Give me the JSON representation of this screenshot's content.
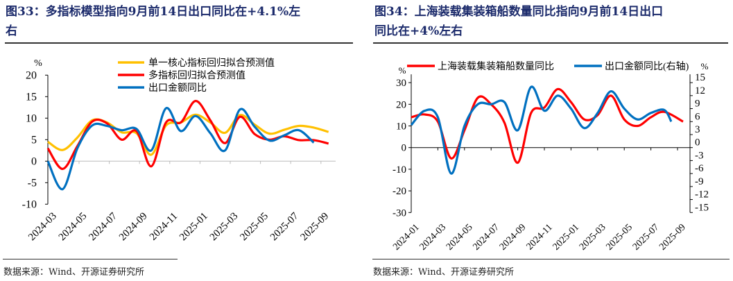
{
  "panels": [
    {
      "title_line1": "图33：多指标模型指向9月前14日出口同比在+4.1%左",
      "title_line2": "右",
      "source": "数据来源：Wind、开源证券研究所"
    },
    {
      "title_line1": "图34：上海装载集装箱船数量同比指向9月前14日出口",
      "title_line2": "同比在+4%左右",
      "source": "数据来源：Wind、开源证券研究所"
    }
  ],
  "chart_data": [
    {
      "type": "line",
      "unit_label": "%",
      "x": [
        "2024-02",
        "2024-03",
        "2024-04",
        "2024-05",
        "2024-06",
        "2024-07",
        "2024-08",
        "2024-09",
        "2024-10",
        "2024-11",
        "2024-12",
        "2025-01",
        "2025-02",
        "2025-03",
        "2025-04",
        "2025-05",
        "2025-06",
        "2025-07",
        "2025-08",
        "2025-09"
      ],
      "xtick_labels": [
        "2024-03",
        "2024-05",
        "2024-07",
        "2024-09",
        "2024-11",
        "2025-01",
        "2025-03",
        "2025-05",
        "2025-07",
        "2025-09"
      ],
      "ylim": [
        -10,
        20
      ],
      "yticks": [
        20,
        15,
        10,
        5,
        0,
        -5,
        -10
      ],
      "legend_position": "top-right",
      "series": [
        {
          "name": "单一核心指标回归拟合预测值",
          "color": "#ffc000",
          "values": [
            4.5,
            2.6,
            5.5,
            9.5,
            9,
            6.7,
            6.5,
            1.5,
            8.3,
            9,
            10.8,
            9,
            6.6,
            10.7,
            8.5,
            6.4,
            7.3,
            8.2,
            7.8,
            6.8
          ]
        },
        {
          "name": "多指标回归拟合预测值",
          "color": "#ff0000",
          "values": [
            3,
            -1.8,
            3.5,
            9.2,
            8.8,
            5,
            7,
            -1.2,
            9,
            9,
            14,
            9.5,
            4.2,
            10.3,
            6.3,
            5,
            5.8,
            4.9,
            4.9,
            4.1
          ]
        },
        {
          "name": "出口金额同比",
          "color": "#0070c0",
          "values": [
            0,
            -6.5,
            3,
            8.3,
            8.2,
            7.2,
            7.5,
            2.5,
            12.3,
            7,
            10.5,
            6.5,
            2.5,
            12,
            8,
            4.8,
            6,
            7.2,
            4.3,
            null
          ]
        }
      ]
    },
    {
      "type": "line",
      "unit_label_left": "%",
      "unit_label_right": "%",
      "x": [
        "2024-01",
        "2024-02",
        "2024-03",
        "2024-04",
        "2024-05",
        "2024-06",
        "2024-07",
        "2024-08",
        "2024-09",
        "2024-10",
        "2024-11",
        "2024-12",
        "2025-01",
        "2025-02",
        "2025-03",
        "2025-04",
        "2025-05",
        "2025-06",
        "2025-07",
        "2025-08",
        "2025-09"
      ],
      "xtick_labels": [
        "2024-01",
        "2024-03",
        "2024-05",
        "2024-07",
        "2024-09",
        "2024-11",
        "2025-01",
        "2025-03",
        "2025-05",
        "2025-07",
        "2025-09"
      ],
      "ylim_left": [
        -30,
        30
      ],
      "yticks_left": [
        30,
        20,
        10,
        0,
        -10,
        -20,
        -30
      ],
      "ylim_right": [
        -15,
        15
      ],
      "yticks_right": [
        15,
        12,
        9,
        6,
        3,
        0,
        -3,
        -6,
        -9,
        -12,
        -15
      ],
      "legend_position": "top",
      "series": [
        {
          "name": "上海装载集装箱船数量同比",
          "axis": "left",
          "color": "#ff0000",
          "values": [
            14,
            15.3,
            12,
            -5,
            8,
            23,
            20,
            11.5,
            -7,
            16,
            18.5,
            27,
            21,
            13,
            15,
            24,
            13,
            10,
            14,
            16.5,
            12
          ]
        },
        {
          "name": "出口金额同比(右轴)",
          "axis": "right",
          "color": "#0070c0",
          "values": [
            5.2,
            8.5,
            7,
            -6,
            5,
            10,
            10,
            10.5,
            4,
            14,
            8.5,
            12,
            9,
            4.5,
            8,
            13,
            9,
            6.5,
            8,
            8.7,
            6
          ]
        }
      ]
    }
  ]
}
